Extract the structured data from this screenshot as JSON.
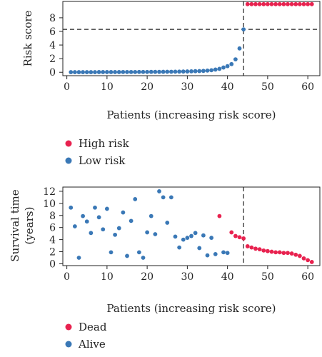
{
  "chart_data": [
    {
      "type": "scatter",
      "title": "",
      "xlabel": "Patients (increasing risk score)",
      "ylabel": "Risk score",
      "xlim": [
        -1,
        63
      ],
      "ylim": [
        -0.5,
        10.4
      ],
      "xticks": [
        0,
        10,
        20,
        30,
        40,
        50,
        60
      ],
      "yticks": [
        0,
        2,
        4,
        6,
        8
      ],
      "hline": 6.3,
      "vline": 44,
      "grid": false,
      "legend_placement": "below",
      "series": [
        {
          "name": "High risk",
          "color": "#e8224f",
          "points": [
            [
              45,
              10
            ],
            [
              46,
              10
            ],
            [
              47,
              10
            ],
            [
              48,
              10
            ],
            [
              49,
              10
            ],
            [
              50,
              10
            ],
            [
              51,
              10
            ],
            [
              52,
              10
            ],
            [
              53,
              10
            ],
            [
              54,
              10
            ],
            [
              55,
              10
            ],
            [
              56,
              10
            ],
            [
              57,
              10
            ],
            [
              58,
              10
            ],
            [
              59,
              10
            ],
            [
              60,
              10
            ],
            [
              61,
              10
            ]
          ]
        },
        {
          "name": "Low risk",
          "color": "#3a78b6",
          "points": [
            [
              1,
              0.02
            ],
            [
              2,
              0.02
            ],
            [
              3,
              0.02
            ],
            [
              4,
              0.02
            ],
            [
              5,
              0.02
            ],
            [
              6,
              0.02
            ],
            [
              7,
              0.02
            ],
            [
              8,
              0.03
            ],
            [
              9,
              0.03
            ],
            [
              10,
              0.03
            ],
            [
              11,
              0.03
            ],
            [
              12,
              0.03
            ],
            [
              13,
              0.03
            ],
            [
              14,
              0.04
            ],
            [
              15,
              0.04
            ],
            [
              16,
              0.04
            ],
            [
              17,
              0.04
            ],
            [
              18,
              0.05
            ],
            [
              19,
              0.05
            ],
            [
              20,
              0.05
            ],
            [
              21,
              0.06
            ],
            [
              22,
              0.06
            ],
            [
              23,
              0.06
            ],
            [
              24,
              0.07
            ],
            [
              25,
              0.08
            ],
            [
              26,
              0.08
            ],
            [
              27,
              0.09
            ],
            [
              28,
              0.1
            ],
            [
              29,
              0.11
            ],
            [
              30,
              0.12
            ],
            [
              31,
              0.14
            ],
            [
              32,
              0.16
            ],
            [
              33,
              0.18
            ],
            [
              34,
              0.2
            ],
            [
              35,
              0.25
            ],
            [
              36,
              0.3
            ],
            [
              37,
              0.4
            ],
            [
              38,
              0.5
            ],
            [
              39,
              0.7
            ],
            [
              40,
              0.9
            ],
            [
              41,
              1.2
            ],
            [
              42,
              1.9
            ],
            [
              43,
              3.5
            ],
            [
              44,
              6.3
            ]
          ]
        }
      ]
    },
    {
      "type": "scatter",
      "title": "",
      "xlabel": "Patients (increasing risk score)",
      "ylabel": "Survival time (years)",
      "ylabel_lines": [
        "Survival time",
        "(years)"
      ],
      "xlim": [
        -1,
        63
      ],
      "ylim": [
        -0.3,
        12.7
      ],
      "xticks": [
        0,
        10,
        20,
        30,
        40,
        50,
        60
      ],
      "yticks": [
        0,
        2,
        4,
        6,
        8,
        10,
        12
      ],
      "vline": 44,
      "grid": false,
      "legend_placement": "below",
      "series": [
        {
          "name": "Dead",
          "color": "#e8224f",
          "points": [
            [
              38,
              7.9
            ],
            [
              41,
              5.2
            ],
            [
              42,
              4.6
            ],
            [
              43,
              4.4
            ],
            [
              44,
              4.2
            ],
            [
              45,
              2.9
            ],
            [
              46,
              2.7
            ],
            [
              47,
              2.5
            ],
            [
              48,
              2.4
            ],
            [
              49,
              2.2
            ],
            [
              50,
              2.1
            ],
            [
              51,
              2.0
            ],
            [
              52,
              1.9
            ],
            [
              53,
              1.9
            ],
            [
              54,
              1.8
            ],
            [
              55,
              1.8
            ],
            [
              56,
              1.7
            ],
            [
              57,
              1.5
            ],
            [
              58,
              1.3
            ],
            [
              59,
              0.9
            ],
            [
              60,
              0.6
            ],
            [
              61,
              0.3
            ]
          ]
        },
        {
          "name": "Alive",
          "color": "#3a78b6",
          "points": [
            [
              1,
              9.3
            ],
            [
              2,
              6.2
            ],
            [
              3,
              1.0
            ],
            [
              4,
              7.9
            ],
            [
              5,
              7.0
            ],
            [
              6,
              5.1
            ],
            [
              7,
              9.3
            ],
            [
              8,
              7.7
            ],
            [
              9,
              5.7
            ],
            [
              10,
              9.1
            ],
            [
              11,
              1.9
            ],
            [
              12,
              4.8
            ],
            [
              13,
              5.9
            ],
            [
              14,
              8.5
            ],
            [
              15,
              1.3
            ],
            [
              16,
              7.1
            ],
            [
              17,
              10.7
            ],
            [
              18,
              1.9
            ],
            [
              19,
              1.0
            ],
            [
              20,
              5.2
            ],
            [
              21,
              7.9
            ],
            [
              22,
              4.9
            ],
            [
              23,
              12.0
            ],
            [
              24,
              11.0
            ],
            [
              25,
              6.8
            ],
            [
              26,
              11.0
            ],
            [
              27,
              4.5
            ],
            [
              28,
              2.7
            ],
            [
              29,
              4.0
            ],
            [
              30,
              4.3
            ],
            [
              31,
              4.6
            ],
            [
              32,
              5.1
            ],
            [
              33,
              2.6
            ],
            [
              34,
              4.7
            ],
            [
              35,
              1.4
            ],
            [
              36,
              4.3
            ],
            [
              37,
              1.6
            ],
            [
              39,
              1.9
            ],
            [
              40,
              1.8
            ]
          ]
        }
      ]
    }
  ]
}
